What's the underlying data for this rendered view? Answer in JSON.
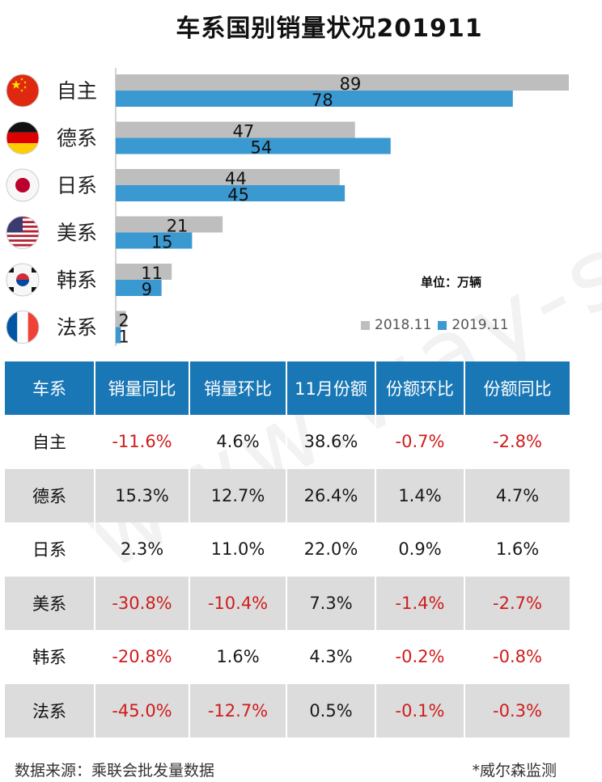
{
  "title": "车系国别销量状况201911",
  "unit_label": "单位：万辆",
  "legend": [
    {
      "name": "2018.11",
      "color": "#bebebe"
    },
    {
      "name": "2019.11",
      "color": "#3b99d1"
    }
  ],
  "flags": [
    "china-flag-icon",
    "germany-flag-icon",
    "japan-flag-icon",
    "usa-flag-icon",
    "korea-flag-icon",
    "france-flag-icon"
  ],
  "chart_data": {
    "type": "bar",
    "orientation": "horizontal",
    "title": "车系国别销量状况201911",
    "unit": "万辆",
    "categories": [
      "自主",
      "德系",
      "日系",
      "美系",
      "韩系",
      "法系"
    ],
    "series": [
      {
        "name": "2018.11",
        "values": [
          89,
          47,
          44,
          21,
          11,
          2
        ]
      },
      {
        "name": "2019.11",
        "values": [
          78,
          54,
          45,
          15,
          9,
          1
        ]
      }
    ],
    "xlim": [
      0,
      89
    ]
  },
  "table": {
    "headers": [
      "车系",
      "销量同比",
      "销量环比",
      "11月份额",
      "份额环比",
      "份额同比"
    ],
    "rows": [
      [
        "自主",
        "-11.6%",
        "4.6%",
        "38.6%",
        "-0.7%",
        "-2.8%"
      ],
      [
        "德系",
        "15.3%",
        "12.7%",
        "26.4%",
        "1.4%",
        "4.7%"
      ],
      [
        "日系",
        "2.3%",
        "11.0%",
        "22.0%",
        "0.9%",
        "1.6%"
      ],
      [
        "美系",
        "-30.8%",
        "-10.4%",
        "7.3%",
        "-1.4%",
        "-2.7%"
      ],
      [
        "韩系",
        "-20.8%",
        "1.6%",
        "4.3%",
        "-0.2%",
        "-0.8%"
      ],
      [
        "法系",
        "-45.0%",
        "-12.7%",
        "0.5%",
        "-0.1%",
        "-0.3%"
      ]
    ]
  },
  "footer": {
    "source": "数据来源：乘联会批发量数据",
    "credit": "*威尔森监测"
  },
  "watermark": "www.way-s.cn"
}
